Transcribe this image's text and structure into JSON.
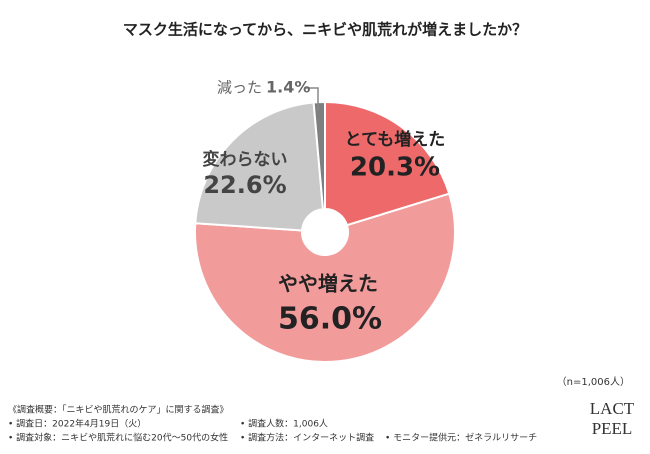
{
  "chart_data": {
    "type": "donut",
    "title": "マスク生活になってから、ニキビや肌荒れが増えましたか？",
    "categories": [
      "とても増えた",
      "やや増えた",
      "変わらない",
      "減った"
    ],
    "values": [
      20.3,
      56.0,
      22.6,
      1.4
    ],
    "value_labels": [
      "20.3%",
      "56.0%",
      "22.6%",
      "1.4%"
    ],
    "colors": [
      "#ee6a6a",
      "#f29b9b",
      "#c9c9c9",
      "#7f7f7f"
    ],
    "note": "（n=1,006人）"
  },
  "footnote": {
    "title": "《調査概要：「ニキビや肌荒れのケア」に関する調査》",
    "items": [
      "• 調査日：2022年4月19日（火）",
      "• 調査対象：ニキビや肌荒れに悩む20代～50代の女性",
      "• 調査人数：1,006人",
      "• 調査方法：インターネット調査",
      "• モニター提供元：ゼネラルリサーチ"
    ]
  },
  "logo": [
    "LACT",
    "PEEL"
  ]
}
